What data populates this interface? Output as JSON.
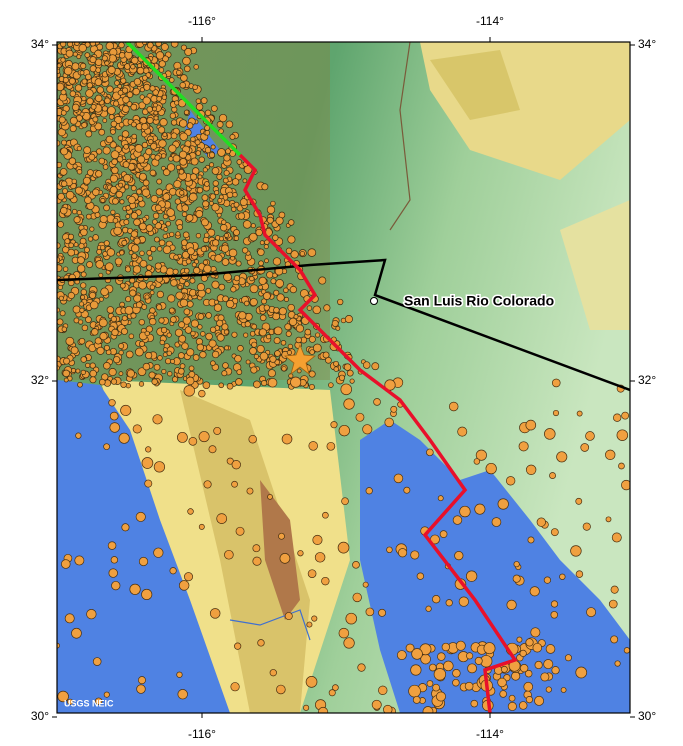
{
  "map": {
    "lon_ticks": [
      {
        "value": -116,
        "label": "-116°"
      },
      {
        "value": -114,
        "label": "-114°"
      }
    ],
    "lat_ticks": [
      {
        "value": 34,
        "label": "34°"
      },
      {
        "value": 32,
        "label": "32°"
      },
      {
        "value": 30,
        "label": "30°"
      }
    ],
    "place_label": "San Luis Rio Colorado",
    "credit": "USGS NEIC"
  }
}
